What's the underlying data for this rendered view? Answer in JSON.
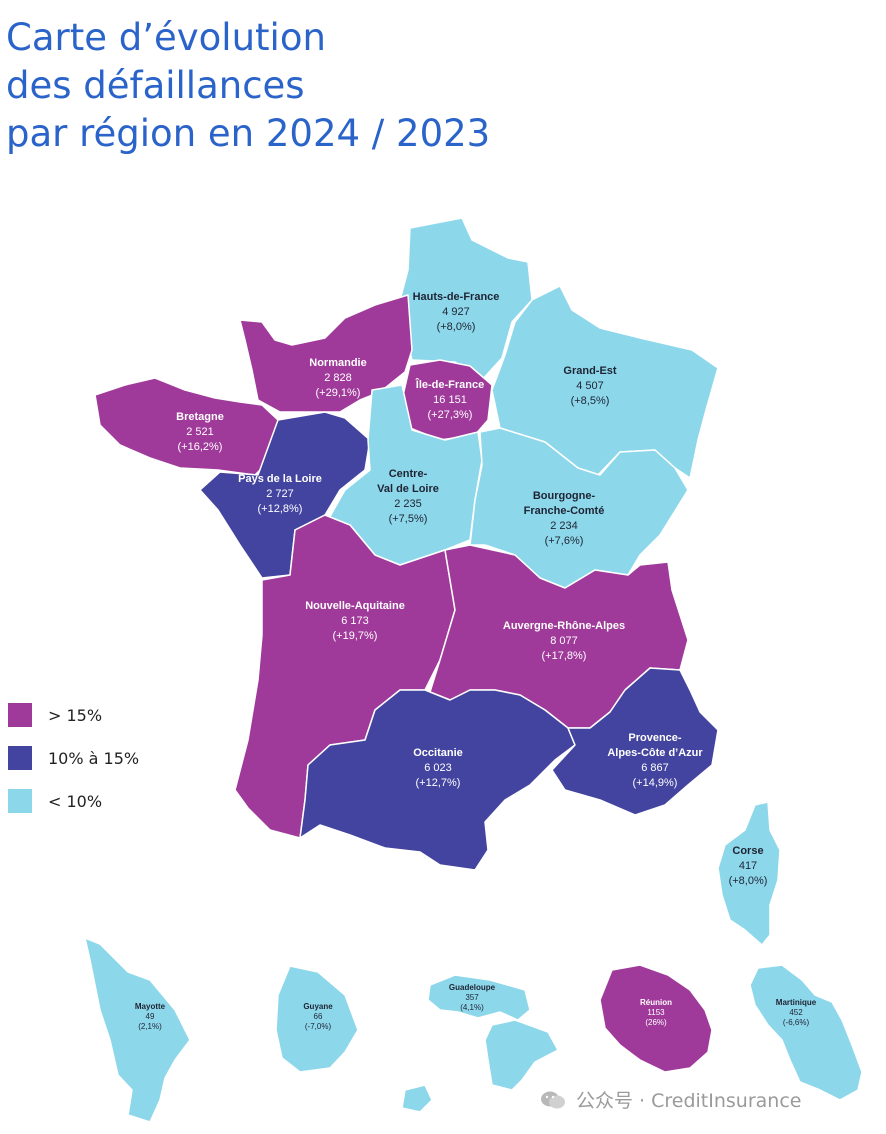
{
  "title_lines": [
    "Carte d’évolution",
    "des défaillances",
    "par région en 2024 / 2023"
  ],
  "colors": {
    "gt15": "#a03a9a",
    "10to15": "#43449f",
    "lt10": "#8dd7eb",
    "title": "#2a63c9"
  },
  "legend": [
    {
      "label": "> 15%",
      "color": "#a03a9a"
    },
    {
      "label": "10% à 15%",
      "color": "#43449f"
    },
    {
      "label": "< 10%",
      "color": "#8dd7eb"
    }
  ],
  "regions": [
    {
      "id": "hauts-de-france",
      "name": "Hauts-de-France",
      "value": "4 927",
      "change": "(+8,0%)",
      "category": "lt10"
    },
    {
      "id": "normandie",
      "name": "Normandie",
      "value": "2 828",
      "change": "(+29,1%)",
      "category": "gt15"
    },
    {
      "id": "ile-de-france",
      "name": "Île-de-France",
      "value": "16 151",
      "change": "(+27,3%)",
      "category": "gt15"
    },
    {
      "id": "grand-est",
      "name": "Grand-Est",
      "value": "4 507",
      "change": "(+8,5%)",
      "category": "lt10"
    },
    {
      "id": "bretagne",
      "name": "Bretagne",
      "value": "2 521",
      "change": "(+16,2%)",
      "category": "gt15"
    },
    {
      "id": "pays-de-la-loire",
      "name": "Pays de la Loire",
      "value": "2 727",
      "change": "(+12,8%)",
      "category": "10to15"
    },
    {
      "id": "centre-val-de-loire",
      "name_lines": [
        "Centre-",
        "Val de Loire"
      ],
      "value": "2 235",
      "change": "(+7,5%)",
      "category": "lt10"
    },
    {
      "id": "bourgogne-franche-comte",
      "name_lines": [
        "Bourgogne-",
        "Franche-Comté"
      ],
      "value": "2 234",
      "change": "(+7,6%)",
      "category": "lt10"
    },
    {
      "id": "nouvelle-aquitaine",
      "name": "Nouvelle-Aquitaine",
      "value": "6 173",
      "change": "(+19,7%)",
      "category": "gt15"
    },
    {
      "id": "auvergne-rhone-alpes",
      "name": "Auvergne-Rhône-Alpes",
      "value": "8 077",
      "change": "(+17,8%)",
      "category": "gt15"
    },
    {
      "id": "occitanie",
      "name": "Occitanie",
      "value": "6 023",
      "change": "(+12,7%)",
      "category": "10to15"
    },
    {
      "id": "paca",
      "name_lines": [
        "Provence-",
        "Alpes-Côte d’Azur"
      ],
      "value": "6 867",
      "change": "(+14,9%)",
      "category": "10to15"
    },
    {
      "id": "corse",
      "name": "Corse",
      "value": "417",
      "change": "(+8,0%)",
      "category": "lt10"
    },
    {
      "id": "mayotte",
      "name": "Mayotte",
      "value": "49",
      "change": "(2,1%)",
      "category": "lt10"
    },
    {
      "id": "guyane",
      "name": "Guyane",
      "value": "66",
      "change": "(-7,0%)",
      "category": "lt10"
    },
    {
      "id": "guadeloupe",
      "name": "Guadeloupe",
      "value": "357",
      "change": "(4,1%)",
      "category": "lt10"
    },
    {
      "id": "reunion",
      "name": "Réunion",
      "value": "1153",
      "change": "(26%)",
      "category": "gt15"
    },
    {
      "id": "martinique",
      "name": "Martinique",
      "value": "452",
      "change": "(-6,6%)",
      "category": "lt10"
    }
  ],
  "watermark": "公众号 · CreditInsurance"
}
